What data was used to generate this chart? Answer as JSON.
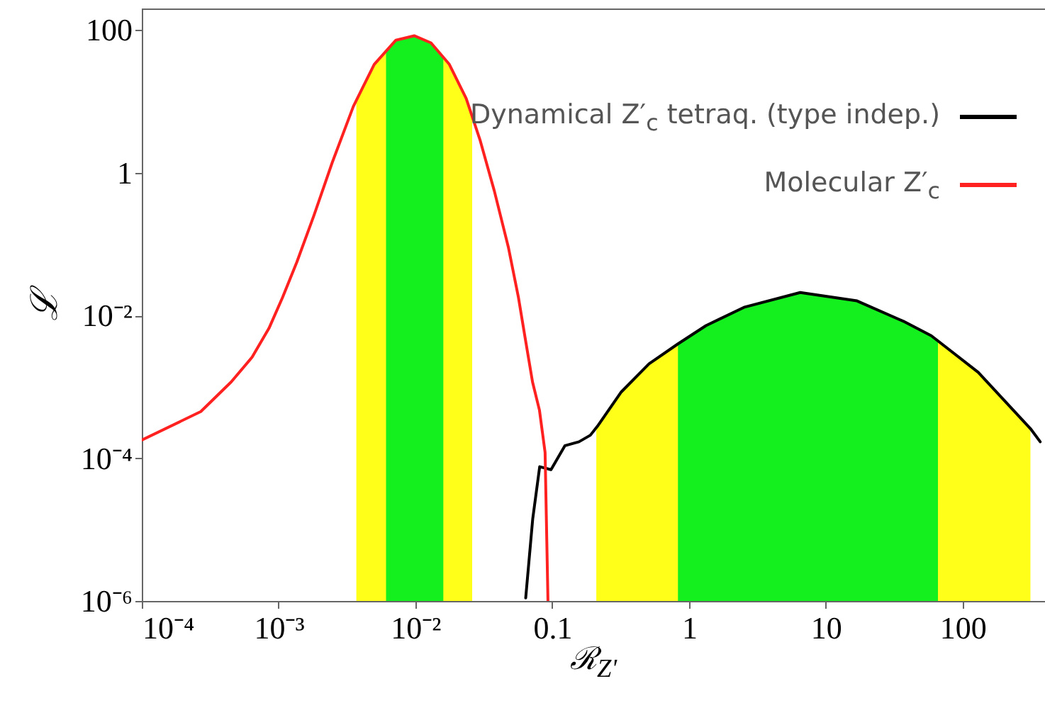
{
  "chart_data": {
    "type": "line",
    "xlabel": "ℛ$_{Z'}$",
    "ylabel": "ℒ",
    "log": "xy",
    "grid": false,
    "legend": "top right",
    "line_style": "solid",
    "marker": "none",
    "xlim": [
      0.0001,
      400
    ],
    "ylim": [
      1e-06,
      200
    ],
    "xticks": [
      {
        "value": 0.0001,
        "label": "10⁻⁴"
      },
      {
        "value": 0.001,
        "label": "10⁻³"
      },
      {
        "value": 0.01,
        "label": "10⁻²"
      },
      0.1,
      1,
      10,
      100
    ],
    "yticks": [
      {
        "value": 1e-06,
        "label": "10⁻⁶"
      },
      {
        "value": 0.0001,
        "label": "10⁻⁴"
      },
      {
        "value": 0.01,
        "label": "10⁻²"
      },
      1,
      100
    ],
    "series": [
      {
        "name": "Dynamical Z′$_{c}$ tetraq. (type indep.)",
        "color": "#000000",
        "x": [
          0.064,
          0.072,
          0.081,
          0.098,
          0.124,
          0.157,
          0.19,
          0.214,
          0.32,
          0.51,
          0.83,
          1.33,
          2.52,
          6.5,
          16.9,
          36.9,
          59,
          130,
          313,
          369
        ],
        "values": [
          1.1e-06,
          1.4e-05,
          7.6e-05,
          6.9e-05,
          0.00015,
          0.00017,
          0.00021,
          0.00028,
          0.00085,
          0.0021,
          0.004,
          0.0072,
          0.013,
          0.021,
          0.016,
          0.0083,
          0.0052,
          0.0016,
          0.00026,
          0.00017
        ]
      },
      {
        "name": "Molecular Z′$_{c}$",
        "color": "#ff2020",
        "x": [
          0.0001,
          0.00027,
          0.00045,
          0.00064,
          0.00085,
          0.00107,
          0.00136,
          0.00181,
          0.00247,
          0.00352,
          0.005,
          0.0072,
          0.0098,
          0.013,
          0.0177,
          0.0235,
          0.0298,
          0.0378,
          0.0479,
          0.0566,
          0.0637,
          0.0718,
          0.0807,
          0.0887,
          0.0931
        ],
        "values": [
          0.00018,
          0.00045,
          0.00117,
          0.0026,
          0.0066,
          0.018,
          0.056,
          0.25,
          1.4,
          8.5,
          33,
          72,
          83,
          66,
          33,
          11,
          2.8,
          0.55,
          0.089,
          0.018,
          0.0046,
          0.00117,
          0.00047,
          0.00012,
          1e-06
        ]
      }
    ],
    "bands": [
      {
        "axis": "x",
        "from": 0.0037,
        "to": 0.026,
        "color": "#ffff1a"
      },
      {
        "axis": "x",
        "from": 0.0061,
        "to": 0.016,
        "color": "#14f01e"
      },
      {
        "axis": "x",
        "from": 0.21,
        "to": 313,
        "color": "#ffff1a"
      },
      {
        "axis": "x",
        "from": 0.83,
        "to": 66,
        "color": "#14f01e"
      }
    ]
  }
}
